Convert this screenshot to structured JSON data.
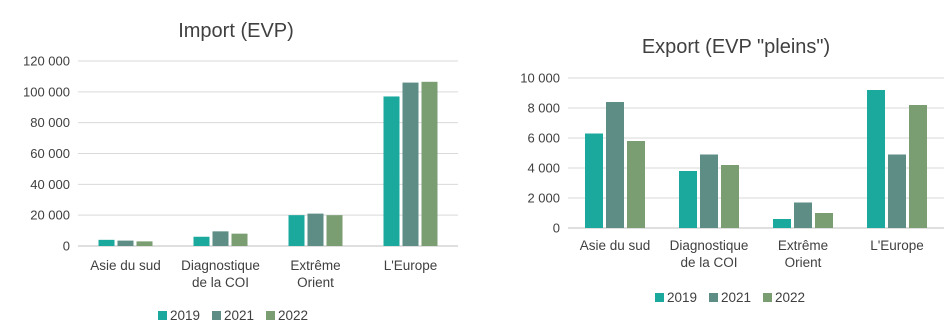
{
  "colors": {
    "2019": "#1ba99e",
    "2021": "#5e8d86",
    "2022": "#7a9e72"
  },
  "chart_data": [
    {
      "type": "bar",
      "title": "Import (EVP)",
      "categories": [
        [
          "Asie du sud"
        ],
        [
          "Diagnostique",
          "de la COI"
        ],
        [
          "Extrême",
          "Orient"
        ],
        [
          "L'Europe"
        ]
      ],
      "series": [
        {
          "name": "2019",
          "values": [
            4000,
            6000,
            20000,
            97000
          ]
        },
        {
          "name": "2021",
          "values": [
            3500,
            9500,
            21000,
            106000
          ]
        },
        {
          "name": "2022",
          "values": [
            3000,
            8000,
            20000,
            106500
          ]
        }
      ],
      "yticks": [
        "0",
        "20 000",
        "40 000",
        "60 000",
        "80 000",
        "100 000",
        "120 000"
      ],
      "ylim": [
        0,
        120000
      ],
      "grid": true,
      "legend": "bottom"
    },
    {
      "type": "bar",
      "title": "Export (EVP \"pleins\")",
      "categories": [
        [
          "Asie du sud"
        ],
        [
          "Diagnostique",
          "de la COI"
        ],
        [
          "Extrême",
          "Orient"
        ],
        [
          "L'Europe"
        ]
      ],
      "series": [
        {
          "name": "2019",
          "values": [
            6300,
            3800,
            600,
            9200
          ]
        },
        {
          "name": "2021",
          "values": [
            8400,
            4900,
            1700,
            4900
          ]
        },
        {
          "name": "2022",
          "values": [
            5800,
            4200,
            1000,
            8200
          ]
        }
      ],
      "yticks": [
        "0",
        "2 000",
        "4 000",
        "6 000",
        "8 000",
        "10 000"
      ],
      "ylim": [
        0,
        10000
      ],
      "grid": true,
      "legend": "bottom"
    }
  ]
}
